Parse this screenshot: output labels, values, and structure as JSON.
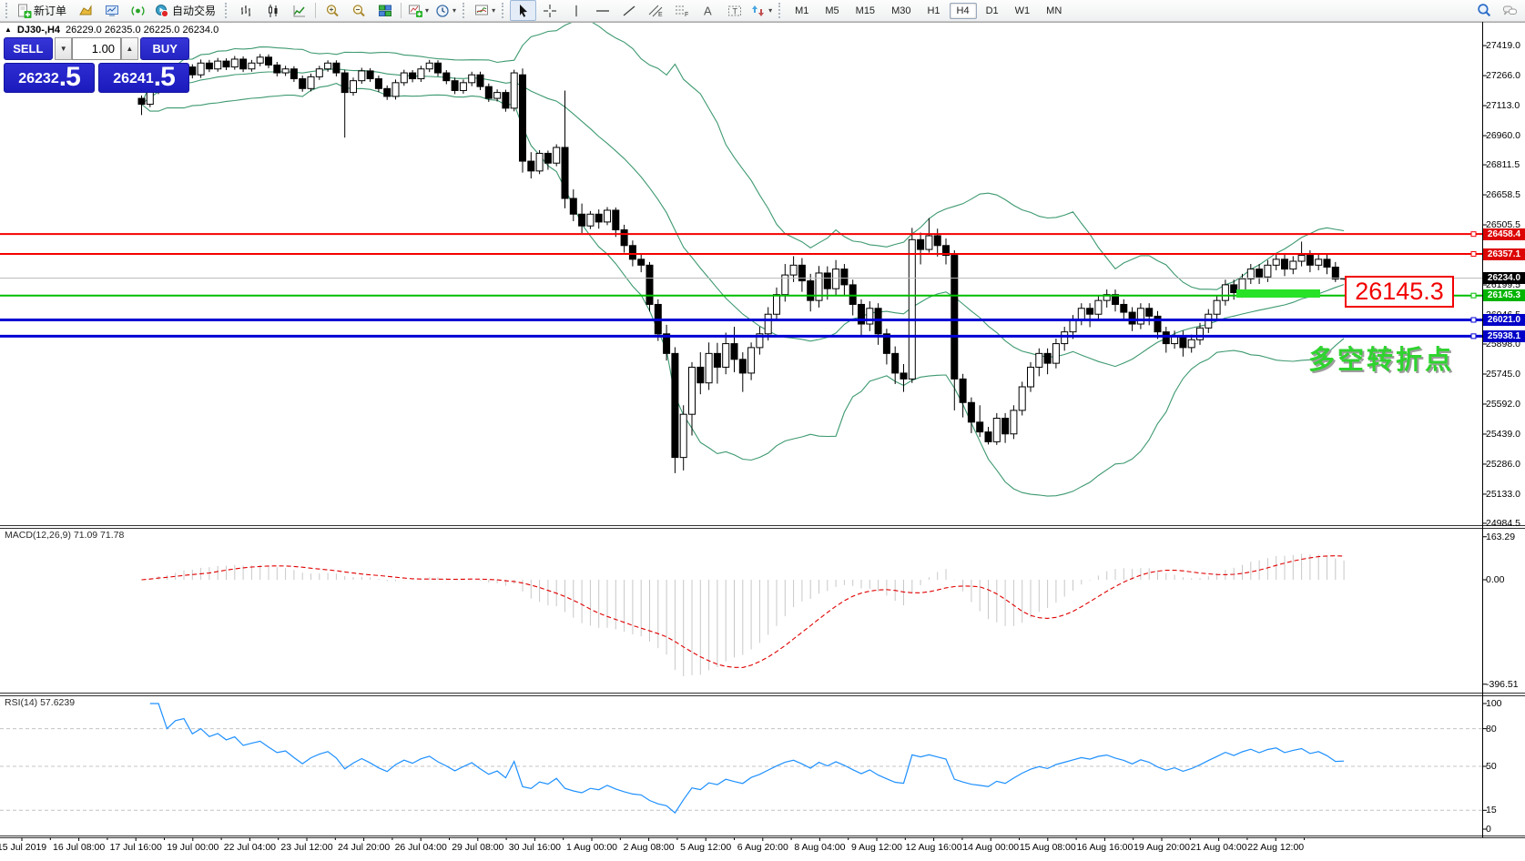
{
  "toolbar": {
    "new_order_label": "新订单",
    "autotrading_label": "自动交易",
    "active_timeframe": "H4",
    "items": [
      {
        "type": "grip"
      },
      {
        "icon": "new-order",
        "label": "新订单"
      },
      {
        "icon": "profiles"
      },
      {
        "icon": "market-watch"
      },
      {
        "icon": "navigator"
      },
      {
        "icon": "autotrading",
        "label": "自动交易"
      },
      {
        "type": "grip"
      },
      {
        "icon": "chart-bars"
      },
      {
        "icon": "chart-candles"
      },
      {
        "icon": "chart-line"
      },
      {
        "type": "sep"
      },
      {
        "icon": "zoom-in"
      },
      {
        "icon": "zoom-out"
      },
      {
        "icon": "tile-windows"
      },
      {
        "type": "sep"
      },
      {
        "icon": "new-chart",
        "caret": true
      },
      {
        "icon": "periods",
        "caret": true
      },
      {
        "type": "grip"
      },
      {
        "icon": "indicators",
        "caret": true
      },
      {
        "type": "grip"
      },
      {
        "icon": "cursor",
        "active": true
      },
      {
        "icon": "crosshair"
      },
      {
        "icon": "vline"
      },
      {
        "icon": "hline"
      },
      {
        "icon": "trendline"
      },
      {
        "icon": "channel"
      },
      {
        "icon": "fibonacci"
      },
      {
        "icon": "text"
      },
      {
        "icon": "text-label"
      },
      {
        "icon": "shapes",
        "caret": true
      },
      {
        "type": "grip"
      },
      {
        "type": "tf",
        "label": "M1"
      },
      {
        "type": "tf",
        "label": "M5"
      },
      {
        "type": "tf",
        "label": "M15"
      },
      {
        "type": "tf",
        "label": "M30"
      },
      {
        "type": "tf",
        "label": "H1"
      },
      {
        "type": "tf",
        "label": "H4"
      },
      {
        "type": "tf",
        "label": "D1"
      },
      {
        "type": "tf",
        "label": "W1"
      },
      {
        "type": "tf",
        "label": "MN"
      },
      {
        "type": "spacer"
      },
      {
        "icon": "search"
      },
      {
        "icon": "chat"
      }
    ]
  },
  "title": {
    "collapse_arrow": "▲",
    "symbol": "DJ30-,H4",
    "ohlc": "26229.0 26235.0 26225.0 26234.0"
  },
  "trade_panel": {
    "sell_label": "SELL",
    "buy_label": "BUY",
    "volume": "1.00",
    "sell_price_main": "26232",
    "sell_price_big": ".5",
    "buy_price_main": "26241",
    "buy_price_big": ".5",
    "spin_down": "▼",
    "spin_up": "▲"
  },
  "levels": [
    {
      "label": "26458.4",
      "price": 26458.4,
      "line": "#f40000",
      "bg": "#dd0404",
      "width": 2
    },
    {
      "label": "26357.1",
      "price": 26357.1,
      "line": "#f40000",
      "bg": "#dd0404",
      "width": 2
    },
    {
      "label": "26234.0",
      "price": 26234.0,
      "line": "#b8b8b8",
      "bg": "#000000",
      "width": 1,
      "bid": true
    },
    {
      "label": "26145.3",
      "price": 26145.3,
      "line": "#00be00",
      "bg": "#00b400",
      "width": 2
    },
    {
      "label": "26021.0",
      "price": 26021.0,
      "line": "#0000d4",
      "bg": "#0000c8",
      "width": 3
    },
    {
      "label": "25938.1",
      "price": 25938.1,
      "line": "#0000d4",
      "bg": "#0000c8",
      "width": 3
    }
  ],
  "annotations": {
    "big_price_label": "26145.3",
    "turning_point_text": "多空转折点",
    "highlight_zone_color": "#28e228"
  },
  "macd": {
    "label": "MACD(12,26,9) 71.09 71.78",
    "ticks": [
      {
        "v": 163.29,
        "label": "163.29"
      },
      {
        "v": 0,
        "label": "0.00"
      },
      {
        "v": -396.51,
        "label": "-396.51"
      }
    ]
  },
  "rsi": {
    "label": "RSI(14) 57.6239",
    "ticks": [
      {
        "v": 100,
        "label": "100"
      },
      {
        "v": 80,
        "label": "80"
      },
      {
        "v": 50,
        "label": "50"
      },
      {
        "v": 15,
        "label": "15"
      },
      {
        "v": 0,
        "label": "0"
      }
    ],
    "dashed_levels": [
      80,
      50,
      15
    ]
  },
  "chart_data": {
    "type": "candlestick",
    "symbol": "DJ30",
    "timeframe": "H4",
    "last_ohlc": [
      26229.0,
      26235.0,
      26225.0,
      26234.0
    ],
    "ylim": [
      24975,
      27540
    ],
    "price_ticks": [
      {
        "label": "27419.0",
        "price": 27419.0
      },
      {
        "label": "27266.0",
        "price": 27266.0
      },
      {
        "label": "27113.0",
        "price": 27113.0
      },
      {
        "label": "26960.0",
        "price": 26960.0
      },
      {
        "label": "26811.5",
        "price": 26811.5
      },
      {
        "label": "26658.5",
        "price": 26658.5
      },
      {
        "label": "26505.5",
        "price": 26505.5
      },
      {
        "label": "26199.5",
        "price": 26199.5
      },
      {
        "label": "26046.5",
        "price": 26046.5
      },
      {
        "label": "25898.0",
        "price": 25898.0
      },
      {
        "label": "25745.0",
        "price": 25745.0
      },
      {
        "label": "25592.0",
        "price": 25592.0
      },
      {
        "label": "25439.0",
        "price": 25439.0
      },
      {
        "label": "25286.0",
        "price": 25286.0
      },
      {
        "label": "25133.0",
        "price": 25133.0
      },
      {
        "label": "24984.5",
        "price": 24984.5
      }
    ],
    "time_labels": [
      "15 Jul 2019",
      "16 Jul 08:00",
      "17 Jul 16:00",
      "19 Jul 00:00",
      "22 Jul 04:00",
      "23 Jul 12:00",
      "24 Jul 20:00",
      "26 Jul 04:00",
      "29 Jul 08:00",
      "30 Jul 16:00",
      "1 Aug 00:00",
      "2 Aug 08:00",
      "5 Aug 12:00",
      "6 Aug 20:00",
      "8 Aug 04:00",
      "9 Aug 12:00",
      "12 Aug 16:00",
      "14 Aug 00:00",
      "15 Aug 08:00",
      "16 Aug 16:00",
      "19 Aug 20:00",
      "21 Aug 04:00",
      "22 Aug 12:00"
    ],
    "indicators": {
      "bollinger": {
        "period": 20,
        "deviation": 2,
        "color": "#3d9970"
      },
      "macd": {
        "fast": 12,
        "slow": 26,
        "signal": 9,
        "current_main": 71.09,
        "current_signal": 71.78
      },
      "rsi": {
        "period": 14,
        "current": 57.6239
      }
    },
    "candles": [
      [
        27150,
        27165,
        27065,
        27120
      ],
      [
        27120,
        27205,
        27105,
        27190
      ],
      [
        27190,
        27258,
        27172,
        27240
      ],
      [
        27240,
        27256,
        27192,
        27210
      ],
      [
        27210,
        27296,
        27194,
        27280
      ],
      [
        27280,
        27326,
        27262,
        27310
      ],
      [
        27310,
        27324,
        27252,
        27270
      ],
      [
        27270,
        27348,
        27254,
        27330
      ],
      [
        27330,
        27346,
        27284,
        27300
      ],
      [
        27300,
        27356,
        27286,
        27340
      ],
      [
        27340,
        27354,
        27294,
        27310
      ],
      [
        27310,
        27366,
        27296,
        27350
      ],
      [
        27350,
        27364,
        27284,
        27300
      ],
      [
        27300,
        27346,
        27286,
        27330
      ],
      [
        27330,
        27376,
        27314,
        27360
      ],
      [
        27360,
        27374,
        27304,
        27320
      ],
      [
        27320,
        27336,
        27262,
        27280
      ],
      [
        27280,
        27316,
        27264,
        27300
      ],
      [
        27300,
        27314,
        27234,
        27250
      ],
      [
        27250,
        27266,
        27184,
        27200
      ],
      [
        27200,
        27276,
        27186,
        27260
      ],
      [
        27260,
        27316,
        27244,
        27300
      ],
      [
        27300,
        27344,
        27286,
        27330
      ],
      [
        27330,
        27344,
        27262,
        27280
      ],
      [
        27280,
        27296,
        26950,
        27180
      ],
      [
        27180,
        27256,
        27164,
        27240
      ],
      [
        27240,
        27306,
        27224,
        27290
      ],
      [
        27290,
        27304,
        27234,
        27250
      ],
      [
        27250,
        27266,
        27182,
        27200
      ],
      [
        27200,
        27216,
        27142,
        27160
      ],
      [
        27160,
        27246,
        27144,
        27230
      ],
      [
        27230,
        27296,
        27214,
        27280
      ],
      [
        27280,
        27294,
        27232,
        27250
      ],
      [
        27250,
        27316,
        27234,
        27300
      ],
      [
        27300,
        27346,
        27284,
        27330
      ],
      [
        27330,
        27344,
        27262,
        27280
      ],
      [
        27280,
        27294,
        27222,
        27240
      ],
      [
        27240,
        27256,
        27172,
        27190
      ],
      [
        27190,
        27246,
        27174,
        27230
      ],
      [
        27230,
        27286,
        27212,
        27270
      ],
      [
        27270,
        27286,
        27192,
        27210
      ],
      [
        27210,
        27226,
        27132,
        27150
      ],
      [
        27150,
        27196,
        27134,
        27180
      ],
      [
        27180,
        27194,
        27082,
        27100
      ],
      [
        27100,
        27296,
        27084,
        27280
      ],
      [
        27270,
        27302,
        26772,
        26830
      ],
      [
        26830,
        26876,
        26742,
        26780
      ],
      [
        26780,
        26886,
        26764,
        26870
      ],
      [
        26870,
        26884,
        26786,
        26820
      ],
      [
        26820,
        26916,
        26804,
        26900
      ],
      [
        26900,
        27190,
        26590,
        26640
      ],
      [
        26640,
        26686,
        26524,
        26560
      ],
      [
        26560,
        26614,
        26464,
        26500
      ],
      [
        26500,
        26576,
        26484,
        26560
      ],
      [
        26560,
        26584,
        26486,
        26520
      ],
      [
        26520,
        26596,
        26504,
        26580
      ],
      [
        26580,
        26594,
        26444,
        26480
      ],
      [
        26480,
        26506,
        26364,
        26400
      ],
      [
        26400,
        26426,
        26294,
        26330
      ],
      [
        26330,
        26356,
        26264,
        26300
      ],
      [
        26300,
        26316,
        26064,
        26100
      ],
      [
        26100,
        26126,
        25914,
        25950
      ],
      [
        25950,
        25996,
        25814,
        25850
      ],
      [
        25850,
        25882,
        25240,
        25320
      ],
      [
        25320,
        25586,
        25254,
        25540
      ],
      [
        25540,
        25806,
        25432,
        25780
      ],
      [
        25780,
        25856,
        25642,
        25700
      ],
      [
        25700,
        25906,
        25664,
        25850
      ],
      [
        25850,
        25904,
        25696,
        25780
      ],
      [
        25780,
        25956,
        25744,
        25900
      ],
      [
        25900,
        25986,
        25754,
        25820
      ],
      [
        25820,
        25856,
        25654,
        25750
      ],
      [
        25750,
        25906,
        25714,
        25880
      ],
      [
        25880,
        25986,
        25844,
        25950
      ],
      [
        25950,
        26086,
        25916,
        26050
      ],
      [
        26050,
        26186,
        26014,
        26150
      ],
      [
        26150,
        26306,
        26114,
        26250
      ],
      [
        26250,
        26346,
        26214,
        26300
      ],
      [
        26300,
        26336,
        26164,
        26220
      ],
      [
        26220,
        26256,
        26064,
        26120
      ],
      [
        26120,
        26296,
        26084,
        26260
      ],
      [
        26260,
        26294,
        26124,
        26180
      ],
      [
        26180,
        26326,
        26144,
        26280
      ],
      [
        26280,
        26306,
        26144,
        26200
      ],
      [
        26200,
        26226,
        26044,
        26100
      ],
      [
        26100,
        26126,
        25944,
        26000
      ],
      [
        26000,
        26116,
        25964,
        26080
      ],
      [
        26080,
        26106,
        25894,
        25950
      ],
      [
        25950,
        25976,
        25794,
        25850
      ],
      [
        25850,
        25886,
        25694,
        25750
      ],
      [
        25750,
        25796,
        25654,
        25720
      ],
      [
        25720,
        26490,
        25700,
        26430
      ],
      [
        26430,
        26466,
        26304,
        26380
      ],
      [
        26380,
        26540,
        26364,
        26450
      ],
      [
        26450,
        26486,
        26344,
        26400
      ],
      [
        26400,
        26436,
        26304,
        26350
      ],
      [
        26350,
        26376,
        25560,
        25720
      ],
      [
        25720,
        25746,
        25524,
        25600
      ],
      [
        25600,
        25626,
        25444,
        25500
      ],
      [
        25500,
        25586,
        25424,
        25450
      ],
      [
        25450,
        25476,
        25386,
        25400
      ],
      [
        25400,
        25546,
        25384,
        25520
      ],
      [
        25520,
        25546,
        25394,
        25440
      ],
      [
        25440,
        25586,
        25414,
        25560
      ],
      [
        25560,
        25706,
        25534,
        25680
      ],
      [
        25680,
        25806,
        25654,
        25780
      ],
      [
        25780,
        25876,
        25734,
        25850
      ],
      [
        25850,
        25876,
        25744,
        25800
      ],
      [
        25800,
        25926,
        25774,
        25900
      ],
      [
        25900,
        25986,
        25864,
        25960
      ],
      [
        25960,
        26046,
        25924,
        26020
      ],
      [
        26020,
        26106,
        25994,
        26080
      ],
      [
        26080,
        26106,
        25984,
        26050
      ],
      [
        26050,
        26146,
        26024,
        26120
      ],
      [
        26120,
        26176,
        26084,
        26150
      ],
      [
        26150,
        26176,
        26064,
        26100
      ],
      [
        26100,
        26126,
        26024,
        26060
      ],
      [
        26060,
        26086,
        25964,
        26000
      ],
      [
        26000,
        26106,
        25974,
        26080
      ],
      [
        26080,
        26106,
        25994,
        26040
      ],
      [
        26040,
        26066,
        25924,
        25960
      ],
      [
        25960,
        25986,
        25854,
        25900
      ],
      [
        25900,
        25966,
        25874,
        25940
      ],
      [
        25940,
        25966,
        25834,
        25880
      ],
      [
        25880,
        25946,
        25854,
        25920
      ],
      [
        25920,
        26006,
        25894,
        25980
      ],
      [
        25980,
        26076,
        25954,
        26050
      ],
      [
        26050,
        26146,
        26024,
        26120
      ],
      [
        26120,
        26226,
        26094,
        26200
      ],
      [
        26200,
        26226,
        26124,
        26160
      ],
      [
        26160,
        26256,
        26134,
        26230
      ],
      [
        26230,
        26306,
        26204,
        26280
      ],
      [
        26280,
        26306,
        26204,
        26240
      ],
      [
        26240,
        26326,
        26214,
        26300
      ],
      [
        26300,
        26356,
        26274,
        26330
      ],
      [
        26330,
        26356,
        26244,
        26280
      ],
      [
        26280,
        26346,
        26254,
        26320
      ],
      [
        26320,
        26420,
        26294,
        26350
      ],
      [
        26350,
        26376,
        26264,
        26300
      ],
      [
        26300,
        26356,
        26274,
        26330
      ],
      [
        26330,
        26356,
        26254,
        26290
      ],
      [
        26290,
        26316,
        26214,
        26229
      ],
      [
        26229,
        26235,
        26225,
        26234
      ]
    ]
  }
}
